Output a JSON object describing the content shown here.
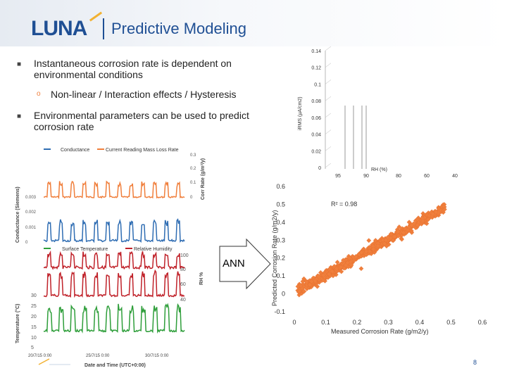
{
  "header": {
    "logo": "LUNA",
    "title": "Predictive Modeling"
  },
  "content": {
    "bullets": [
      "Instantaneous corrosion rate is dependent on environmental conditions",
      "Non-linear / Interaction effects / Hysteresis",
      "Environmental parameters can be used to predict corrosion rate"
    ]
  },
  "ann_label": "ANN",
  "page_number": "8",
  "left_figure": {
    "top_legend": [
      "Conductance",
      "Current Reading Mass Loss Rate"
    ],
    "top_left_axis": "Conductance (Siemens)",
    "top_left_ticks": [
      "0.003",
      "0.002",
      "0.001",
      "0"
    ],
    "top_right_axis": "Corr Rate (g/m²/y)",
    "top_right_ticks": [
      "0.3",
      "0.2",
      "0.1",
      "0"
    ],
    "bottom_legend": [
      "Surface Temperature",
      "Relative Humidity"
    ],
    "bottom_left_axis": "Temperature (°C)",
    "bottom_left_ticks": [
      "30",
      "25",
      "20",
      "15",
      "10",
      "5"
    ],
    "bottom_right_axis": "RH %",
    "bottom_right_ticks": [
      "100",
      "80",
      "60",
      "40"
    ],
    "x_ticks": [
      "20/7/15 0:00",
      "25/7/15 0:00",
      "30/7/15 0:00"
    ],
    "x_label": "Date and Time (UTC+0:00)",
    "colors": {
      "conductance": "#2f6db3",
      "mass_loss": "#f07f3c",
      "temperature": "#2e9e3a",
      "humidity": "#c0222a"
    }
  },
  "chart_data": [
    {
      "type": "surface",
      "title": "",
      "ylabel": "iRMS (µA/cm2)",
      "y_ticks": [
        "0.14",
        "0.12",
        "0.1",
        "0.08",
        "0.06",
        "0.04",
        "0.02",
        "0"
      ],
      "ylim": [
        0,
        0.14
      ],
      "xlabel": "RH (%)",
      "x_ticks": [
        "95",
        "90",
        "80",
        "60",
        "40"
      ]
    },
    {
      "type": "scatter",
      "title": "",
      "xlabel": "Measured Corrosion Rate (g/m2/y)",
      "ylabel": "Predicted Corrosion Rate (g/m2/y)",
      "xlim": [
        0,
        0.6
      ],
      "ylim": [
        -0.1,
        0.6
      ],
      "x_ticks": [
        "0",
        "0.1",
        "0.2",
        "0.3",
        "0.4",
        "0.5",
        "0.6"
      ],
      "y_ticks": [
        "0.6",
        "0.5",
        "0.4",
        "0.3",
        "0.2",
        "0.1",
        "0",
        "-0.1"
      ],
      "r2_label": "R² = 0.98",
      "fit": {
        "slope": 0.98,
        "intercept": 0.01
      },
      "n_points": 700,
      "marker_color": "#f07f3c"
    }
  ]
}
